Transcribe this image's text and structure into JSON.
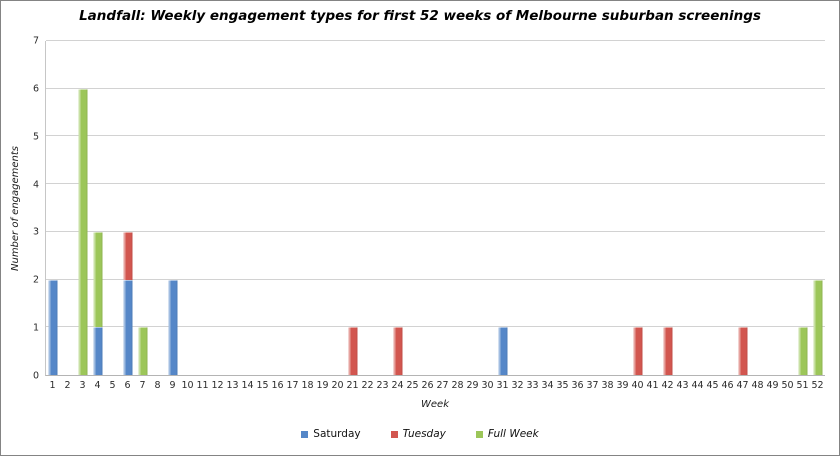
{
  "chart_data": {
    "type": "bar",
    "stacked": true,
    "title": "Landfall: Weekly engagement types for first 52 weeks of Melbourne suburban screenings",
    "xlabel": "Week",
    "ylabel": "Number of engagements",
    "ylim": [
      0,
      7
    ],
    "y_ticks": [
      0,
      1,
      2,
      3,
      4,
      5,
      6,
      7
    ],
    "grid": true,
    "legend_position": "bottom",
    "categories": [
      1,
      2,
      3,
      4,
      5,
      6,
      7,
      8,
      9,
      10,
      11,
      12,
      13,
      14,
      15,
      16,
      17,
      18,
      19,
      20,
      21,
      22,
      23,
      24,
      25,
      26,
      27,
      28,
      29,
      30,
      31,
      32,
      33,
      34,
      35,
      36,
      37,
      38,
      39,
      40,
      41,
      42,
      43,
      44,
      45,
      46,
      47,
      48,
      49,
      50,
      51,
      52
    ],
    "series": [
      {
        "name": "Saturday",
        "color": "#5587c8",
        "italic": false,
        "values": [
          2,
          0,
          0,
          1,
          0,
          2,
          0,
          0,
          2,
          0,
          0,
          0,
          0,
          0,
          0,
          0,
          0,
          0,
          0,
          0,
          0,
          0,
          0,
          0,
          0,
          0,
          0,
          0,
          0,
          0,
          1,
          0,
          0,
          0,
          0,
          0,
          0,
          0,
          0,
          0,
          0,
          0,
          0,
          0,
          0,
          0,
          0,
          0,
          0,
          0,
          0,
          0
        ]
      },
      {
        "name": "Tuesday",
        "color": "#d2564f",
        "italic": true,
        "values": [
          0,
          0,
          0,
          0,
          0,
          1,
          0,
          0,
          0,
          0,
          0,
          0,
          0,
          0,
          0,
          0,
          0,
          0,
          0,
          0,
          1,
          0,
          0,
          1,
          0,
          0,
          0,
          0,
          0,
          0,
          0,
          0,
          0,
          0,
          0,
          0,
          0,
          0,
          0,
          1,
          0,
          1,
          0,
          0,
          0,
          0,
          1,
          0,
          0,
          0,
          0,
          0
        ]
      },
      {
        "name": "Full Week",
        "color": "#9cc659",
        "italic": true,
        "values": [
          0,
          0,
          6,
          2,
          0,
          0,
          1,
          0,
          0,
          0,
          0,
          0,
          0,
          0,
          0,
          0,
          0,
          0,
          0,
          0,
          0,
          0,
          0,
          0,
          0,
          0,
          0,
          0,
          0,
          0,
          0,
          0,
          0,
          0,
          0,
          0,
          0,
          0,
          0,
          0,
          0,
          0,
          0,
          0,
          0,
          0,
          0,
          0,
          0,
          0,
          1,
          2
        ]
      }
    ]
  }
}
